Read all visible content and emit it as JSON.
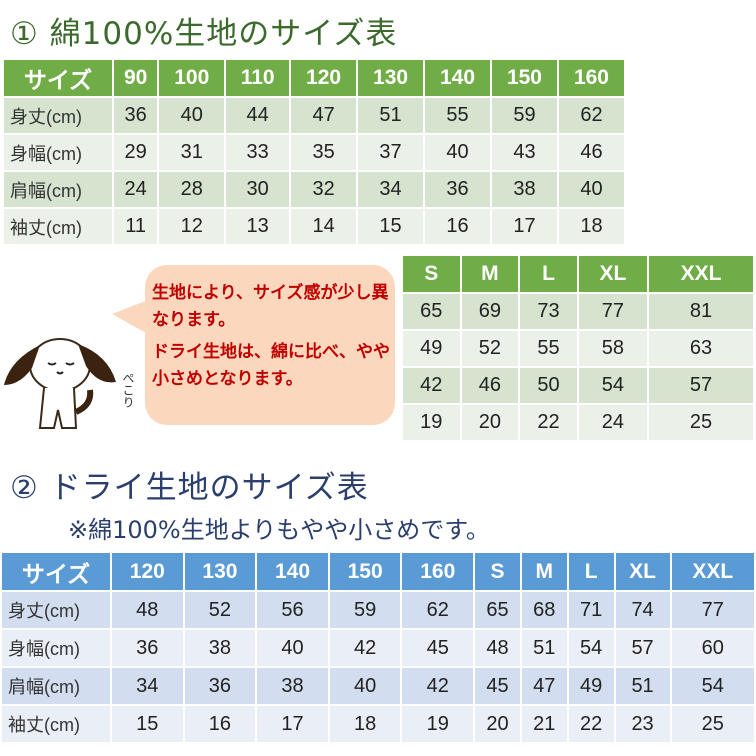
{
  "cotton_section": {
    "title": "① 綿100%生地のサイズ表",
    "table": {
      "header": [
        "サイズ",
        "90",
        "100",
        "110",
        "120",
        "130",
        "140",
        "150",
        "160"
      ],
      "rows": [
        [
          "身丈(cm)",
          "36",
          "40",
          "44",
          "47",
          "51",
          "55",
          "59",
          "62"
        ],
        [
          "身幅(cm)",
          "29",
          "31",
          "33",
          "35",
          "37",
          "40",
          "43",
          "46"
        ],
        [
          "肩幅(cm)",
          "24",
          "28",
          "30",
          "32",
          "34",
          "36",
          "38",
          "40"
        ],
        [
          "袖丈(cm)",
          "11",
          "12",
          "13",
          "14",
          "15",
          "16",
          "17",
          "18"
        ]
      ]
    },
    "adult_table": {
      "header": [
        "S",
        "M",
        "L",
        "XL",
        "XXL"
      ],
      "rows": [
        [
          "65",
          "69",
          "73",
          "77",
          "81"
        ],
        [
          "49",
          "52",
          "55",
          "58",
          "63"
        ],
        [
          "42",
          "46",
          "50",
          "54",
          "57"
        ],
        [
          "19",
          "20",
          "22",
          "24",
          "25"
        ]
      ]
    }
  },
  "note": {
    "line1": "生地により、サイズ感が少し異なります。",
    "line2": "ドライ生地は、綿に比べ、やや小さめとなります。",
    "dog_caption": "ぺこり"
  },
  "dry_section": {
    "title": "② ドライ生地のサイズ表",
    "subtitle": "※綿100%生地よりもやや小さめです。",
    "table": {
      "header": [
        "サイズ",
        "120",
        "130",
        "140",
        "150",
        "160",
        "S",
        "M",
        "L",
        "XL",
        "XXL"
      ],
      "rows": [
        [
          "身丈(cm)",
          "48",
          "52",
          "56",
          "59",
          "62",
          "65",
          "68",
          "71",
          "74",
          "77"
        ],
        [
          "身幅(cm)",
          "36",
          "38",
          "40",
          "42",
          "45",
          "48",
          "51",
          "54",
          "57",
          "60"
        ],
        [
          "肩幅(cm)",
          "34",
          "36",
          "38",
          "40",
          "42",
          "45",
          "47",
          "49",
          "51",
          "54"
        ],
        [
          "袖丈(cm)",
          "15",
          "16",
          "17",
          "18",
          "19",
          "20",
          "21",
          "22",
          "23",
          "25"
        ]
      ]
    }
  },
  "colors": {
    "green_header": "#70ad47",
    "blue_header": "#5b9bd5",
    "note_text": "#c00000",
    "bubble": "#fbd8bd"
  }
}
